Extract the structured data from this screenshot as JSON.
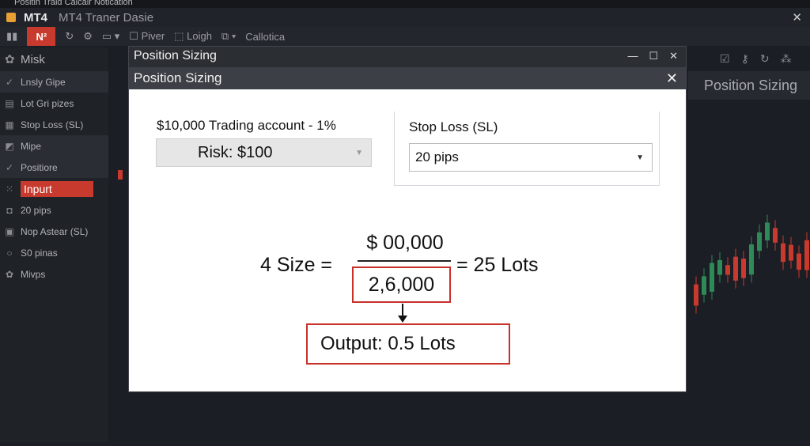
{
  "window": {
    "title": "Positin Trald Calcalr Notication",
    "app": "MT4",
    "subtitle": "MT4 Traner Dasie",
    "close": "✕"
  },
  "toolbar": {
    "items": [
      "Piver",
      "Loigh",
      "Callotica"
    ],
    "active": "N²"
  },
  "sidebar": {
    "header": "Misk",
    "items": [
      {
        "icon": "check-icon",
        "glyph": "✓",
        "label": "Lnsly Gipe"
      },
      {
        "icon": "chart-icon",
        "glyph": "▤",
        "label": "Lot Gri pizes"
      },
      {
        "icon": "grid-icon",
        "glyph": "▦",
        "label": "Stop Loss (SL)"
      },
      {
        "icon": "chart-line-icon",
        "glyph": "◩",
        "label": "Mipe"
      },
      {
        "icon": "check-icon",
        "glyph": "✓",
        "label": "Positiore"
      },
      {
        "icon": "expand-icon",
        "glyph": "⁙",
        "label": "Inpurt"
      },
      {
        "icon": "shield-icon",
        "glyph": "◘",
        "label": "20 pips"
      },
      {
        "icon": "image-icon",
        "glyph": "▣",
        "label": "Nop Astear (SL)"
      },
      {
        "icon": "circle-icon",
        "glyph": "○",
        "label": "S0 pinas"
      },
      {
        "icon": "gear-icon",
        "glyph": "✿",
        "label": "Mivps"
      }
    ]
  },
  "right_panel": {
    "title": "Position Sizing"
  },
  "dialog": {
    "outer_title": "Position Sizing",
    "inner_title": "Position Sizing",
    "account_label": "$10,000 Trading account - 1%",
    "risk_value": "Risk: $100",
    "sl_label": "Stop Loss (SL)",
    "sl_value": "20 pips",
    "formula_left": "4 Size =",
    "numerator": "$ 00,000",
    "denominator": "2,6,000",
    "formula_right": "= 25 Lots",
    "output": "Output: 0.5 Lots"
  },
  "colors": {
    "accent": "#c83a2e",
    "bull": "#2e8b57",
    "bear": "#c83a2e"
  }
}
